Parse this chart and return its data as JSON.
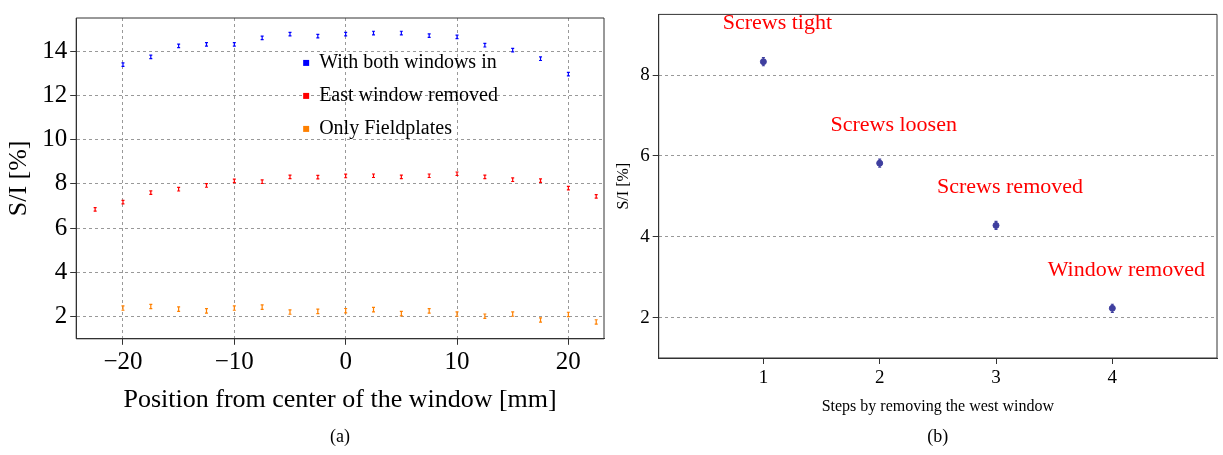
{
  "chart_data": [
    {
      "type": "scatter",
      "xlabel": "Position from center of the window [mm]",
      "ylabel": "S/I [%]",
      "xlim": [
        -24.2,
        23.2
      ],
      "xticks": [
        {
          "value": -20,
          "label": "−20"
        },
        {
          "value": -10,
          "label": "−10"
        },
        0,
        10,
        20
      ],
      "ylim": [
        1,
        15.5
      ],
      "yticks": [
        2,
        4,
        6,
        8,
        10,
        12,
        14
      ],
      "grid": true,
      "legend": "top",
      "annotations": [
        "(a)"
      ],
      "series": [
        {
          "name": "With both windows in",
          "color": "#0000ff",
          "x": [
            -20,
            -17.5,
            -15,
            -12.5,
            -10,
            -7.5,
            -5,
            -2.5,
            0,
            2.5,
            5,
            7.5,
            10,
            12.5,
            15,
            17.5,
            20
          ],
          "values": [
            13.39,
            13.74,
            14.24,
            14.31,
            14.31,
            14.6,
            14.77,
            14.68,
            14.77,
            14.82,
            14.82,
            14.7,
            14.65,
            14.27,
            14.05,
            13.66,
            12.96
          ],
          "errors": [
            0.08,
            0.08,
            0.08,
            0.08,
            0.08,
            0.08,
            0.08,
            0.08,
            0.08,
            0.08,
            0.08,
            0.08,
            0.08,
            0.08,
            0.08,
            0.08,
            0.08
          ]
        },
        {
          "name": "East window removed",
          "color": "#ff0000",
          "x": [
            -22.5,
            -20,
            -17.5,
            -15,
            -12.5,
            -10,
            -7.5,
            -5,
            -2.5,
            0,
            2.5,
            5,
            7.5,
            10,
            12.5,
            15,
            17.5,
            20,
            22.5
          ],
          "values": [
            6.85,
            7.18,
            7.61,
            7.76,
            7.93,
            8.14,
            8.1,
            8.32,
            8.31,
            8.36,
            8.37,
            8.32,
            8.37,
            8.46,
            8.32,
            8.19,
            8.15,
            7.81,
            7.44
          ],
          "errors": [
            0.08,
            0.08,
            0.08,
            0.08,
            0.08,
            0.08,
            0.08,
            0.08,
            0.08,
            0.08,
            0.08,
            0.08,
            0.08,
            0.08,
            0.08,
            0.08,
            0.08,
            0.08,
            0.08
          ]
        },
        {
          "name": "Only Fieldplates",
          "color": "#ff8000",
          "x": [
            -20,
            -17.5,
            -15,
            -12.5,
            -10,
            -7.5,
            -5,
            -2.5,
            0,
            2.5,
            5,
            7.5,
            10,
            12.5,
            15,
            17.5,
            20,
            22.5
          ],
          "values": [
            2.39,
            2.46,
            2.34,
            2.26,
            2.39,
            2.43,
            2.21,
            2.24,
            2.27,
            2.32,
            2.14,
            2.26,
            2.12,
            2.02,
            2.12,
            1.85,
            2.1,
            1.76
          ],
          "errors": [
            0.1,
            0.1,
            0.1,
            0.1,
            0.1,
            0.1,
            0.1,
            0.1,
            0.1,
            0.1,
            0.1,
            0.1,
            0.1,
            0.1,
            0.1,
            0.1,
            0.1,
            0.1
          ]
        }
      ]
    },
    {
      "type": "scatter",
      "xlabel": "Steps by removing the west window",
      "ylabel": "S/I [%]",
      "xlim": [
        0.1,
        4.9
      ],
      "xticks": [
        1,
        2,
        3,
        4
      ],
      "ylim": [
        1,
        9.5
      ],
      "yticks": [
        2,
        4,
        6,
        8
      ],
      "grid": "y",
      "marker": "circle",
      "annotations": [
        {
          "text": "Screws tight",
          "x": 1,
          "y": 8.33
        },
        {
          "text": "Screws loosen",
          "x": 2,
          "y": 5.82
        },
        {
          "text": "Screws removed",
          "x": 3,
          "y": 4.28
        },
        {
          "text": "Window removed",
          "x": 4,
          "y": 2.23
        },
        "(b)"
      ],
      "series": [
        {
          "color": "#3f3f9f",
          "x": [
            1,
            2,
            3,
            4
          ],
          "values": [
            8.33,
            5.82,
            4.28,
            2.23
          ],
          "errors": [
            0.1,
            0.1,
            0.1,
            0.1
          ]
        }
      ]
    }
  ]
}
